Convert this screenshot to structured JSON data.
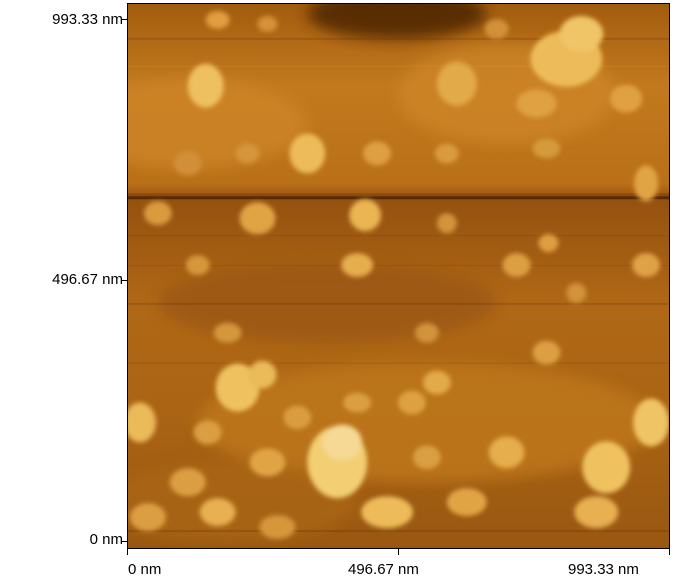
{
  "image": {
    "type": "afm-height-map",
    "palette": [
      "#5a2a05",
      "#8a4a10",
      "#b86a1a",
      "#d58a2a",
      "#f3b851",
      "#ffe9a0"
    ]
  },
  "axes": {
    "y_ticks": [
      "993.33 nm",
      "496.67 nm",
      "0 nm"
    ],
    "x_ticks": [
      "0 nm",
      "496.67 nm",
      "993.33 nm"
    ]
  }
}
